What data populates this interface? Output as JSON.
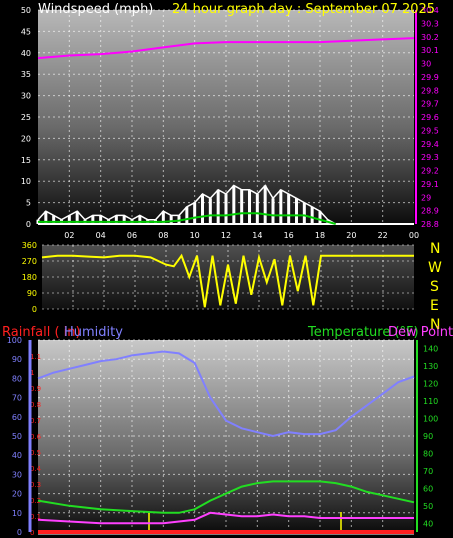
{
  "title": {
    "wind_label": "Windspeed (mph)",
    "graph_label": "24 hour graph day : September 07 2025",
    "wind_label_color": "#ffffff",
    "graph_label_color": "#ffff00"
  },
  "bottom_labels": {
    "rainfall": "Rainfall ( in)",
    "humidity": "Humidity",
    "temperature": "Temperature (°F)",
    "dewpoint": "Dew Point",
    "colors": {
      "rainfall": "#ff2020",
      "humidity": "#8080ff",
      "temperature": "#22dd22",
      "dewpoint": "#ff40ff"
    }
  },
  "compass_labels": [
    "N",
    "W",
    "S",
    "E",
    "N"
  ],
  "chart_data": [
    {
      "type": "line",
      "name": "wind-and-pressure",
      "x_ticks": [
        "02",
        "04",
        "06",
        "08",
        "10",
        "12",
        "14",
        "16",
        "18",
        "20",
        "22",
        "00"
      ],
      "xlim": [
        0,
        24
      ],
      "left_axis": {
        "ticks": [
          0,
          5,
          10,
          15,
          20,
          25,
          30,
          35,
          40,
          45,
          50
        ],
        "ylim": [
          0,
          50
        ]
      },
      "right_axis": {
        "ticks": [
          "28.8",
          "28.9",
          "29",
          "29.1",
          "29.2",
          "29.3",
          "29.4",
          "29.5",
          "29.6",
          "29.7",
          "29.8",
          "29.9",
          "30",
          "30.1",
          "30.2",
          "30.3",
          "30.4"
        ],
        "ylim": [
          28.8,
          30.4
        ]
      },
      "series": [
        {
          "color": "#ff00ff",
          "axis": "right",
          "x": [
            0,
            2,
            4,
            6,
            8,
            10,
            12,
            14,
            16,
            18,
            20,
            22,
            24
          ],
          "values": [
            30.04,
            30.06,
            30.07,
            30.09,
            30.12,
            30.15,
            30.16,
            30.16,
            30.16,
            30.16,
            30.17,
            30.18,
            30.19
          ]
        },
        {
          "color": "#ffffff",
          "axis": "left",
          "style": "dense",
          "x": [
            0,
            0.5,
            1,
            1.5,
            2,
            2.5,
            3,
            3.5,
            4,
            4.5,
            5,
            5.5,
            6,
            6.5,
            7,
            7.5,
            8,
            8.5,
            9,
            9.5,
            10,
            10.5,
            11,
            11.5,
            12,
            12.5,
            13,
            13.5,
            14,
            14.5,
            15,
            15.5,
            16,
            16.5,
            17,
            17.5,
            18,
            18.5,
            19
          ],
          "values": [
            1,
            3,
            2,
            1,
            2,
            3,
            1,
            2,
            2,
            1,
            2,
            2,
            1,
            2,
            1,
            1,
            3,
            2,
            2,
            4,
            5,
            7,
            6,
            8,
            7,
            9,
            8,
            8,
            7,
            9,
            6,
            8,
            7,
            6,
            5,
            4,
            3,
            1,
            0
          ]
        },
        {
          "color": "#00cc00",
          "axis": "left",
          "x": [
            0,
            2,
            4,
            6,
            8,
            9,
            10,
            11,
            12,
            13,
            14,
            15,
            16,
            17,
            18,
            19
          ],
          "values": [
            0.5,
            0.5,
            0.5,
            0.5,
            0.5,
            0.8,
            1.5,
            2,
            2,
            2.5,
            2.5,
            2,
            2,
            2,
            1,
            0
          ]
        }
      ]
    },
    {
      "type": "line",
      "name": "wind-direction",
      "xlim": [
        0,
        24
      ],
      "left_axis": {
        "ticks": [
          0,
          90,
          180,
          270,
          360
        ],
        "ylim": [
          0,
          360
        ]
      },
      "series": [
        {
          "color": "#ffff00",
          "x": [
            0,
            1,
            2,
            3,
            4,
            5,
            6,
            7,
            8,
            8.5,
            9,
            9.5,
            10,
            10.5,
            11,
            11.5,
            12,
            12.5,
            13,
            13.5,
            14,
            14.5,
            15,
            15.5,
            16,
            16.5,
            17,
            17.5,
            18,
            19,
            20,
            21,
            22,
            23,
            24
          ],
          "values": [
            290,
            300,
            300,
            295,
            290,
            300,
            300,
            290,
            250,
            240,
            300,
            180,
            300,
            10,
            300,
            20,
            250,
            30,
            300,
            80,
            290,
            150,
            280,
            20,
            300,
            100,
            300,
            20,
            300,
            300,
            300,
            300,
            300,
            300,
            300
          ]
        }
      ]
    },
    {
      "type": "line",
      "name": "rain-humidity-temperature",
      "xlim": [
        0,
        24
      ],
      "rain_axis": {
        "ticks": [
          "0",
          "0.1",
          "0.2",
          "0.3",
          "0.4",
          "0.5",
          "0.6",
          "0.7",
          "0.8",
          "0.9",
          "1",
          "1.1"
        ],
        "ylim": [
          0,
          1.2
        ]
      },
      "humidity_axis": {
        "ticks": [
          0,
          10,
          20,
          30,
          40,
          50,
          60,
          70,
          80,
          90,
          100
        ],
        "ylim": [
          0,
          100
        ]
      },
      "temperature_axis": {
        "ticks": [
          40,
          50,
          60,
          70,
          80,
          90,
          100,
          110,
          120,
          130,
          140
        ],
        "ylim": [
          35,
          145
        ]
      },
      "series": [
        {
          "color": "#8080ff",
          "axis": "humidity",
          "x": [
            0,
            1,
            2,
            3,
            4,
            5,
            6,
            7,
            8,
            9,
            10,
            11,
            12,
            13,
            14,
            15,
            16,
            17,
            18,
            19,
            20,
            21,
            22,
            23,
            24
          ],
          "values": [
            80,
            83,
            85,
            87,
            89,
            90,
            92,
            93,
            94,
            93,
            88,
            70,
            58,
            54,
            52,
            50,
            52,
            51,
            51,
            53,
            60,
            66,
            72,
            78,
            81
          ]
        },
        {
          "color": "#22dd22",
          "axis": "temperature",
          "x": [
            0,
            2,
            4,
            6,
            8,
            9,
            10,
            11,
            12,
            13,
            14,
            15,
            16,
            17,
            18,
            19,
            20,
            21,
            22,
            23,
            24
          ],
          "values": [
            53,
            50,
            48,
            47,
            46,
            46,
            48,
            53,
            57,
            61,
            63,
            64,
            64,
            64,
            64,
            63,
            61,
            58,
            56,
            54,
            52
          ]
        },
        {
          "color": "#ff40ff",
          "axis": "temperature",
          "x": [
            0,
            2,
            4,
            6,
            8,
            9,
            10,
            11,
            12,
            13,
            14,
            15,
            16,
            17,
            18,
            20,
            22,
            24
          ],
          "values": [
            42,
            41,
            40,
            40,
            40,
            41,
            42,
            46,
            45,
            44,
            44,
            45,
            44,
            44,
            43,
            43,
            43,
            43
          ]
        },
        {
          "color": "#ff2020",
          "axis": "rain",
          "x": [
            0,
            24
          ],
          "values": [
            0,
            0
          ]
        }
      ]
    }
  ]
}
